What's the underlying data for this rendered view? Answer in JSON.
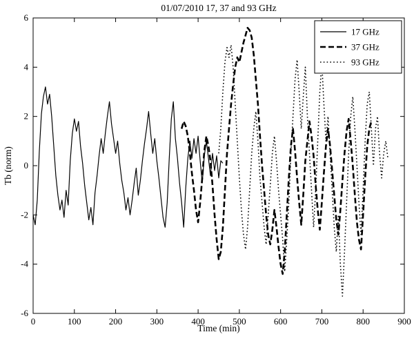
{
  "colors": {
    "line": "#000000",
    "background": "#ffffff"
  },
  "chart_data": {
    "type": "line",
    "title": "01/07/2010 17, 37 and 93 GHz",
    "xlabel": "Time (min)",
    "ylabel": "Tb (norm)",
    "xlim": [
      0,
      900
    ],
    "ylim": [
      -6,
      6
    ],
    "xticks": [
      0,
      100,
      200,
      300,
      400,
      500,
      600,
      700,
      800,
      900
    ],
    "yticks": [
      -6,
      -4,
      -2,
      0,
      2,
      4,
      6
    ],
    "grid": false,
    "legend_position": "top-right",
    "series": [
      {
        "name": "17 GHz",
        "style": "solid",
        "width": 1.2,
        "x0": 0,
        "dx": 5,
        "values": [
          -2.0,
          -2.4,
          -1.4,
          0.6,
          2.1,
          2.8,
          3.2,
          2.5,
          2.9,
          2.0,
          0.8,
          -0.4,
          -1.2,
          -1.8,
          -1.4,
          -2.1,
          -1.0,
          -1.6,
          0.2,
          1.3,
          1.9,
          1.4,
          1.8,
          0.8,
          0.1,
          -0.8,
          -1.5,
          -2.2,
          -1.7,
          -2.4,
          -1.1,
          -0.4,
          0.4,
          1.1,
          0.5,
          1.3,
          2.0,
          2.6,
          1.7,
          1.1,
          0.5,
          1.0,
          0.1,
          -0.6,
          -1.1,
          -1.8,
          -1.3,
          -2.0,
          -1.4,
          -0.7,
          -0.1,
          -1.2,
          -0.6,
          0.2,
          0.9,
          1.5,
          2.2,
          1.3,
          0.5,
          1.1,
          0.2,
          -0.5,
          -1.3,
          -2.1,
          -2.5,
          -1.5,
          0.3,
          1.9,
          2.6,
          1.1,
          0.3,
          -0.7,
          -1.5,
          -2.5,
          -0.9,
          0.3,
          1.0,
          0.3,
          1.1,
          0.5,
          1.2,
          0.2,
          -0.7,
          0.4,
          1.0,
          0.3,
          -0.4,
          0.5,
          -0.2,
          0.4,
          -0.5,
          0.2,
          0.1
        ]
      },
      {
        "name": "37 GHz",
        "style": "dashed",
        "width": 2.6,
        "x0": 360,
        "dx": 5,
        "values": [
          1.5,
          1.8,
          1.6,
          1.2,
          0.5,
          -0.3,
          -1.0,
          -1.8,
          -2.3,
          -1.5,
          -0.5,
          0.6,
          1.2,
          0.8,
          0.2,
          -0.8,
          -2.0,
          -3.0,
          -3.8,
          -3.5,
          -2.5,
          -1.0,
          0.5,
          1.5,
          2.5,
          3.3,
          4.0,
          4.4,
          4.2,
          4.6,
          5.0,
          5.3,
          5.6,
          5.5,
          5.2,
          4.5,
          3.5,
          2.5,
          1.2,
          0.0,
          -1.0,
          -2.0,
          -2.8,
          -3.2,
          -2.6,
          -1.8,
          -2.5,
          -3.3,
          -4.0,
          -4.4,
          -3.5,
          -2.0,
          -0.5,
          0.8,
          1.5,
          0.6,
          -0.5,
          -1.5,
          -2.4,
          -1.2,
          0.2,
          1.0,
          1.8,
          1.2,
          0.4,
          -0.8,
          -1.8,
          -2.6,
          -1.5,
          -0.3,
          0.8,
          1.5,
          0.8,
          -0.2,
          -1.2,
          -2.2,
          -2.8,
          -1.8,
          -0.6,
          0.5,
          1.4,
          1.9,
          1.0,
          0.0,
          -1.2,
          -2.3,
          -3.0,
          -3.4,
          -2.0,
          -0.5,
          0.8,
          1.5,
          1.8
        ]
      },
      {
        "name": "93 GHz",
        "style": "dotted",
        "width": 1.6,
        "x0": 450,
        "dx": 5,
        "values": [
          0.5,
          1.5,
          3.0,
          4.2,
          4.8,
          4.4,
          4.9,
          4.0,
          2.5,
          1.0,
          -0.5,
          -1.8,
          -2.8,
          -3.4,
          -2.5,
          -1.0,
          0.5,
          1.5,
          2.2,
          1.0,
          -0.5,
          -1.5,
          -2.5,
          -3.2,
          -2.0,
          -0.8,
          0.5,
          1.2,
          0.2,
          -1.0,
          -2.0,
          -3.0,
          -4.3,
          -3.0,
          -1.5,
          0.5,
          2.0,
          3.5,
          4.3,
          3.0,
          1.5,
          2.8,
          4.0,
          2.0,
          0.5,
          -1.0,
          -2.5,
          -1.0,
          1.0,
          3.0,
          4.2,
          2.5,
          1.0,
          2.0,
          0.5,
          -1.0,
          -2.5,
          -3.5,
          -2.0,
          -4.0,
          -5.3,
          -3.5,
          -1.5,
          0.5,
          2.0,
          2.8,
          1.5,
          0.0,
          -1.5,
          -2.8,
          -1.0,
          1.0,
          2.5,
          3.0,
          1.5,
          0.0,
          1.5,
          2.0,
          0.5,
          -0.5,
          0.5,
          1.0,
          0.3
        ]
      }
    ]
  }
}
